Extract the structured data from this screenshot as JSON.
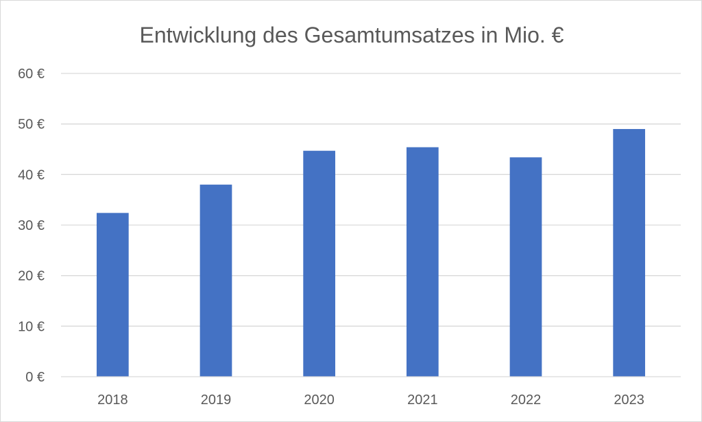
{
  "chart_data": {
    "type": "bar",
    "title": "Entwicklung des Gesamtumsatzes in Mio. €",
    "xlabel": "",
    "ylabel": "",
    "categories": [
      "2018",
      "2019",
      "2020",
      "2021",
      "2022",
      "2023"
    ],
    "values": [
      32.4,
      38.0,
      44.7,
      45.4,
      43.4,
      49.0
    ],
    "ylim": [
      0,
      60
    ],
    "yticks": [
      0,
      10,
      20,
      30,
      40,
      50,
      60
    ],
    "ytick_labels": [
      "0 €",
      "10 €",
      "20 €",
      "30 €",
      "40 €",
      "50 €",
      "60 €"
    ],
    "grid": true,
    "legend": "none",
    "bar_color": "#4472c4"
  }
}
